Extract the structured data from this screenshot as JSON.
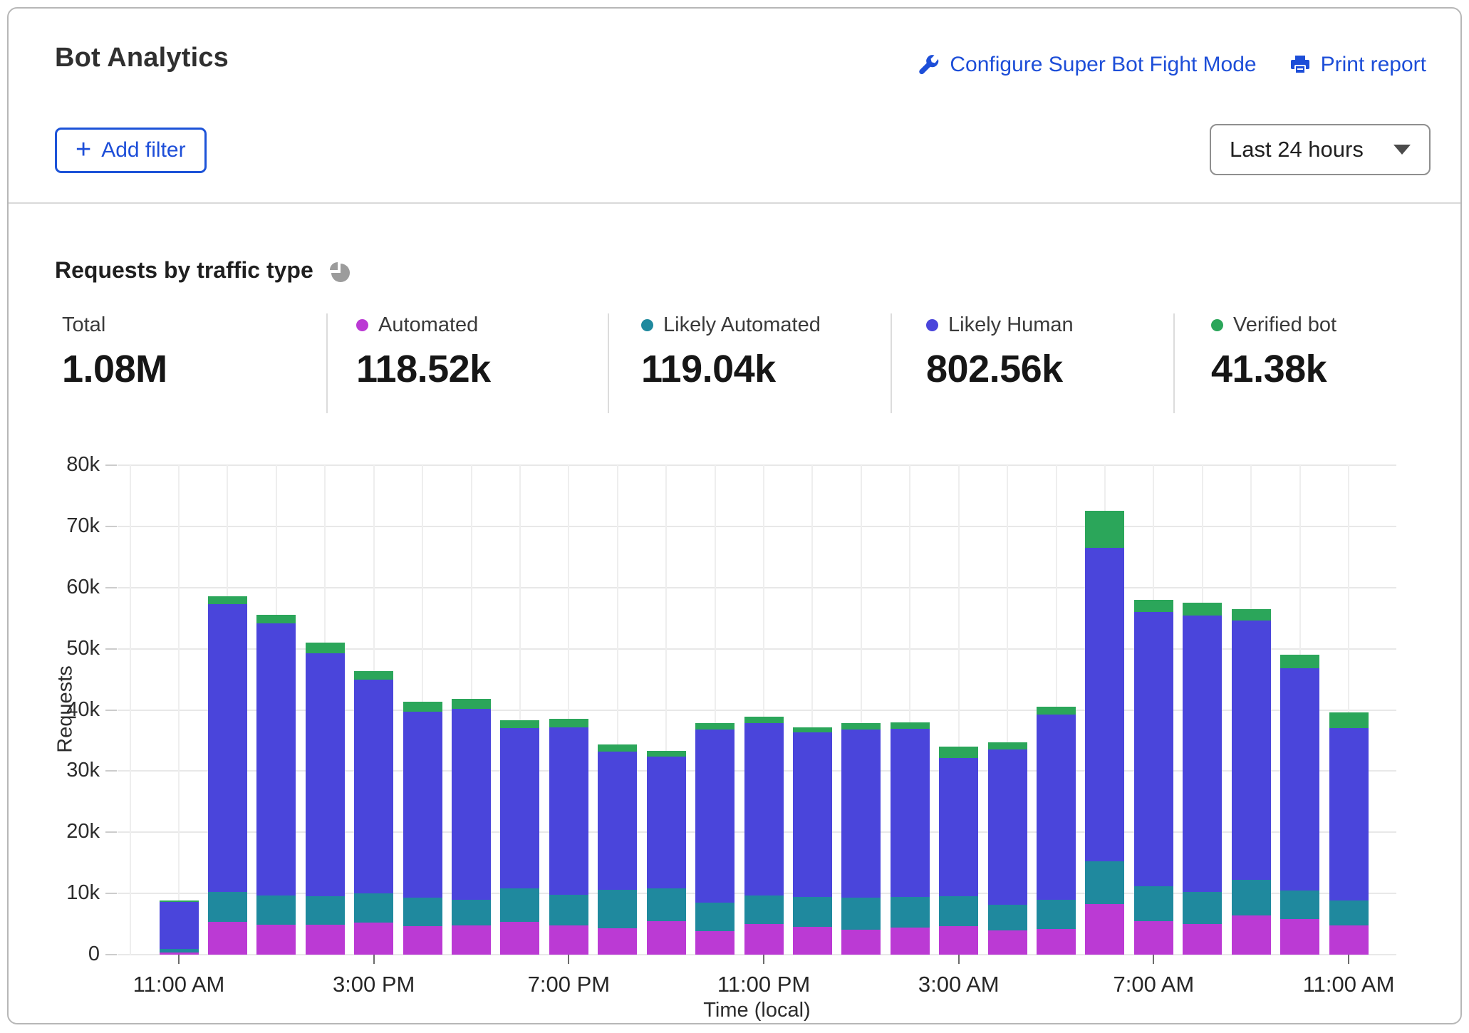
{
  "header": {
    "title": "Bot Analytics",
    "configure_label": "Configure Super Bot Fight Mode",
    "print_label": "Print report",
    "add_filter_label": "Add filter",
    "plus_glyph": "+",
    "time_range_value": "Last 24 hours"
  },
  "icons": {
    "configure": "wrench-icon",
    "print": "printer-icon",
    "section": "pie-chart-icon",
    "select": "caret-down-icon",
    "add_filter": "plus-icon"
  },
  "section": {
    "title": "Requests by traffic type"
  },
  "stats": [
    {
      "label": "Total",
      "value": "1.08M",
      "color": null
    },
    {
      "label": "Automated",
      "value": "118.52k",
      "color": "#bb3ad4"
    },
    {
      "label": "Likely Automated",
      "value": "119.04k",
      "color": "#1f899e"
    },
    {
      "label": "Likely Human",
      "value": "802.56k",
      "color": "#4a45db"
    },
    {
      "label": "Verified bot",
      "value": "41.38k",
      "color": "#2ba65a"
    }
  ],
  "chart_data": {
    "type": "bar",
    "stacked": true,
    "title": "Requests by traffic type",
    "xlabel": "Time (local)",
    "ylabel": "Requests",
    "ylim": [
      0,
      80000
    ],
    "grid": true,
    "ytick_labels": [
      "0",
      "10k",
      "20k",
      "30k",
      "40k",
      "50k",
      "60k",
      "70k",
      "80k"
    ],
    "categories": [
      "11:00 AM",
      "12:00 PM",
      "1:00 PM",
      "2:00 PM",
      "3:00 PM",
      "4:00 PM",
      "5:00 PM",
      "6:00 PM",
      "7:00 PM",
      "8:00 PM",
      "9:00 PM",
      "10:00 PM",
      "11:00 PM",
      "12:00 AM",
      "1:00 AM",
      "2:00 AM",
      "3:00 AM",
      "4:00 AM",
      "5:00 AM",
      "6:00 AM",
      "7:00 AM",
      "8:00 AM",
      "9:00 AM",
      "10:00 AM",
      "11:00 AM"
    ],
    "xtick_indices": [
      0,
      4,
      8,
      12,
      16,
      20,
      24
    ],
    "series": [
      {
        "name": "Automated",
        "color": "#bb3ad4",
        "values": [
          400,
          5300,
          4900,
          4900,
          5200,
          4700,
          4800,
          5400,
          4800,
          4300,
          5500,
          3900,
          5000,
          4500,
          4100,
          4400,
          4700,
          4000,
          4200,
          8300,
          5500,
          5000,
          6400,
          5800,
          4800
        ]
      },
      {
        "name": "Likely Automated",
        "color": "#1f899e",
        "values": [
          500,
          5000,
          4800,
          4600,
          4800,
          4600,
          4200,
          5400,
          5000,
          6300,
          5300,
          4600,
          4700,
          4900,
          5200,
          5000,
          4800,
          4200,
          4800,
          6900,
          5700,
          5200,
          5800,
          4700,
          4000
        ]
      },
      {
        "name": "Likely Human",
        "color": "#4a45db",
        "values": [
          7700,
          47000,
          44500,
          39800,
          35000,
          30400,
          31200,
          26200,
          27400,
          22600,
          21600,
          28300,
          28100,
          26900,
          27500,
          27500,
          22600,
          25300,
          30200,
          51300,
          44800,
          45200,
          42400,
          36300,
          28200
        ]
      },
      {
        "name": "Verified bot",
        "color": "#2ba65a",
        "values": [
          300,
          1300,
          1400,
          1700,
          1400,
          1600,
          1600,
          1300,
          1400,
          1100,
          900,
          1000,
          1100,
          900,
          1000,
          1100,
          1900,
          1200,
          1300,
          6000,
          2000,
          2100,
          1900,
          2200,
          2600
        ]
      }
    ]
  }
}
